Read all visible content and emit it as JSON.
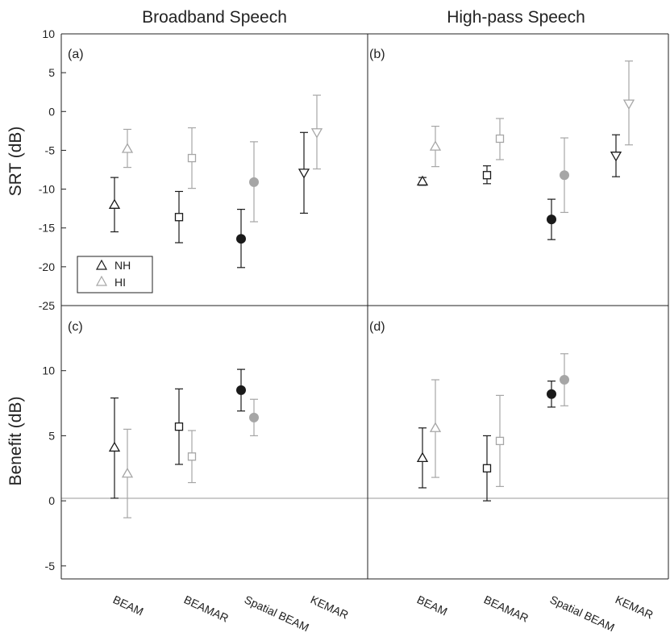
{
  "colors": {
    "nh": "#1a1a1a",
    "hi": "#a6a6a6",
    "zero_line": "#9a9a9a",
    "axis": "#222222"
  },
  "legend": {
    "entries": [
      "NH",
      "HI"
    ],
    "location": "bottom-left of panel (a)"
  },
  "chart_data": [
    {
      "type": "scatter",
      "panel": "(a)",
      "title": "Broadband Speech",
      "ylabel": "SRT (dB)",
      "ylim": [
        -25,
        10
      ],
      "yticks": [
        -25,
        -20,
        -15,
        -10,
        -5,
        0,
        5,
        10
      ],
      "categories": [
        "BEAM",
        "BEAMAR",
        "Spatial BEAM",
        "KEMAR"
      ],
      "series": [
        {
          "name": "NH",
          "points": [
            {
              "category": "BEAM",
              "marker": "triangle-up",
              "value": -12.0,
              "err_low": -15.5,
              "err_high": -8.5
            },
            {
              "category": "BEAMAR",
              "marker": "square",
              "value": -13.6,
              "err_low": -16.9,
              "err_high": -10.3
            },
            {
              "category": "Spatial BEAM",
              "marker": "circle-filled",
              "value": -16.4,
              "err_low": -20.1,
              "err_high": -12.6
            },
            {
              "category": "KEMAR",
              "marker": "triangle-down",
              "value": -7.9,
              "err_low": -13.1,
              "err_high": -2.7
            }
          ]
        },
        {
          "name": "HI",
          "points": [
            {
              "category": "BEAM",
              "marker": "triangle-up",
              "value": -4.8,
              "err_low": -7.2,
              "err_high": -2.3
            },
            {
              "category": "BEAMAR",
              "marker": "square",
              "value": -6.0,
              "err_low": -9.9,
              "err_high": -2.1
            },
            {
              "category": "Spatial BEAM",
              "marker": "circle-filled",
              "value": -9.1,
              "err_low": -14.2,
              "err_high": -3.9
            },
            {
              "category": "KEMAR",
              "marker": "triangle-down",
              "value": -2.7,
              "err_low": -7.4,
              "err_high": 2.1
            }
          ]
        }
      ]
    },
    {
      "type": "scatter",
      "panel": "(b)",
      "title": "High-pass Speech",
      "ylabel": "",
      "ylim": [
        -25,
        10
      ],
      "categories": [
        "BEAM",
        "BEAMAR",
        "Spatial BEAM",
        "KEMAR"
      ],
      "series": [
        {
          "name": "NH",
          "points": [
            {
              "category": "BEAM",
              "marker": "triangle-up",
              "value": -9.0,
              "err_low": -9.5,
              "err_high": -8.5
            },
            {
              "category": "BEAMAR",
              "marker": "square",
              "value": -8.2,
              "err_low": -9.3,
              "err_high": -7.0
            },
            {
              "category": "Spatial BEAM",
              "marker": "circle-filled",
              "value": -13.9,
              "err_low": -16.5,
              "err_high": -11.3
            },
            {
              "category": "KEMAR",
              "marker": "triangle-down",
              "value": -5.7,
              "err_low": -8.4,
              "err_high": -3.0
            }
          ]
        },
        {
          "name": "HI",
          "points": [
            {
              "category": "BEAM",
              "marker": "triangle-up",
              "value": -4.5,
              "err_low": -7.1,
              "err_high": -1.9
            },
            {
              "category": "BEAMAR",
              "marker": "square",
              "value": -3.5,
              "err_low": -6.2,
              "err_high": -0.9
            },
            {
              "category": "Spatial BEAM",
              "marker": "circle-filled",
              "value": -8.2,
              "err_low": -13.0,
              "err_high": -3.4
            },
            {
              "category": "KEMAR",
              "marker": "triangle-down",
              "value": 1.0,
              "err_low": -4.3,
              "err_high": 6.5
            }
          ]
        }
      ]
    },
    {
      "type": "scatter",
      "panel": "(c)",
      "title": "",
      "ylabel": "Benefit (dB)",
      "ylim": [
        -6,
        15
      ],
      "yticks": [
        -5,
        0,
        5,
        10
      ],
      "zero_line": 0,
      "categories": [
        "BEAM",
        "BEAMAR",
        "Spatial BEAM"
      ],
      "series": [
        {
          "name": "NH",
          "points": [
            {
              "category": "BEAM",
              "marker": "triangle-up",
              "value": 4.1,
              "err_low": 0.2,
              "err_high": 7.9
            },
            {
              "category": "BEAMAR",
              "marker": "square",
              "value": 5.7,
              "err_low": 2.8,
              "err_high": 8.6
            },
            {
              "category": "Spatial BEAM",
              "marker": "circle-filled",
              "value": 8.5,
              "err_low": 6.9,
              "err_high": 10.1
            }
          ]
        },
        {
          "name": "HI",
          "points": [
            {
              "category": "BEAM",
              "marker": "triangle-up",
              "value": 2.1,
              "err_low": -1.3,
              "err_high": 5.5
            },
            {
              "category": "BEAMAR",
              "marker": "square",
              "value": 3.4,
              "err_low": 1.4,
              "err_high": 5.4
            },
            {
              "category": "Spatial BEAM",
              "marker": "circle-filled",
              "value": 6.4,
              "err_low": 5.0,
              "err_high": 7.8
            }
          ]
        }
      ]
    },
    {
      "type": "scatter",
      "panel": "(d)",
      "title": "",
      "ylabel": "",
      "ylim": [
        -6,
        15
      ],
      "zero_line": 0,
      "categories": [
        "BEAM",
        "BEAMAR",
        "Spatial BEAM"
      ],
      "series": [
        {
          "name": "NH",
          "points": [
            {
              "category": "BEAM",
              "marker": "triangle-up",
              "value": 3.3,
              "err_low": 1.0,
              "err_high": 5.6
            },
            {
              "category": "BEAMAR",
              "marker": "square",
              "value": 2.5,
              "err_low": 0.0,
              "err_high": 5.0
            },
            {
              "category": "Spatial BEAM",
              "marker": "circle-filled",
              "value": 8.2,
              "err_low": 7.2,
              "err_high": 9.2
            }
          ]
        },
        {
          "name": "HI",
          "points": [
            {
              "category": "BEAM",
              "marker": "triangle-up",
              "value": 5.6,
              "err_low": 1.8,
              "err_high": 9.3
            },
            {
              "category": "BEAMAR",
              "marker": "square",
              "value": 4.6,
              "err_low": 1.1,
              "err_high": 8.1
            },
            {
              "category": "Spatial BEAM",
              "marker": "circle-filled",
              "value": 9.3,
              "err_low": 7.3,
              "err_high": 11.3
            }
          ]
        }
      ]
    }
  ],
  "x_axis": {
    "tick_labels": [
      "BEAM",
      "BEAMAR",
      "Spatial BEAM",
      "KEMAR"
    ]
  }
}
